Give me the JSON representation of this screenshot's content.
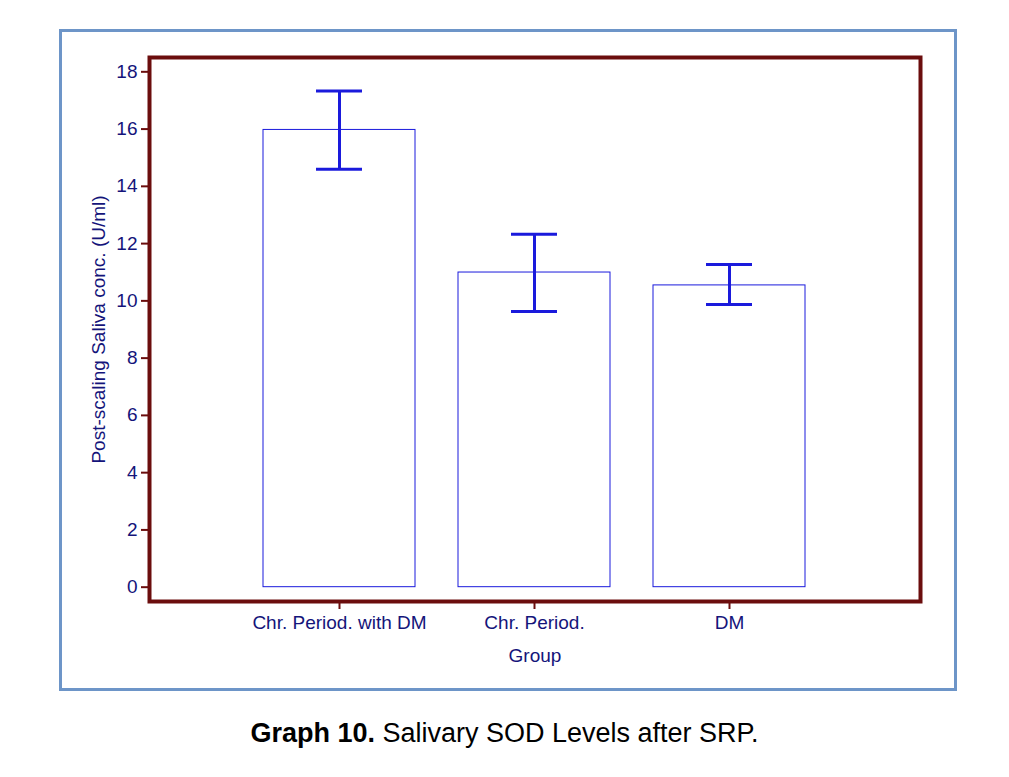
{
  "chart_data": {
    "type": "bar",
    "caption": "Graph 10. Salivary SOD Levels after SRP.",
    "x_label": "Group",
    "y_label": "Post-scaling Saliva conc. (U/ml)",
    "categories": [
      "Chr. Period. with DM",
      "Chr. Period.",
      "DM"
    ],
    "values": [
      15.97,
      10.99,
      10.54
    ],
    "error_lower": [
      14.6,
      9.63,
      9.87
    ],
    "error_upper": [
      17.33,
      12.33,
      11.27
    ],
    "color": "#1a1adc",
    "ylim": [
      -0.5,
      18.5
    ],
    "yticks": [
      0,
      2,
      4,
      6,
      8,
      10,
      12,
      14,
      16,
      18
    ],
    "grid": false
  }
}
